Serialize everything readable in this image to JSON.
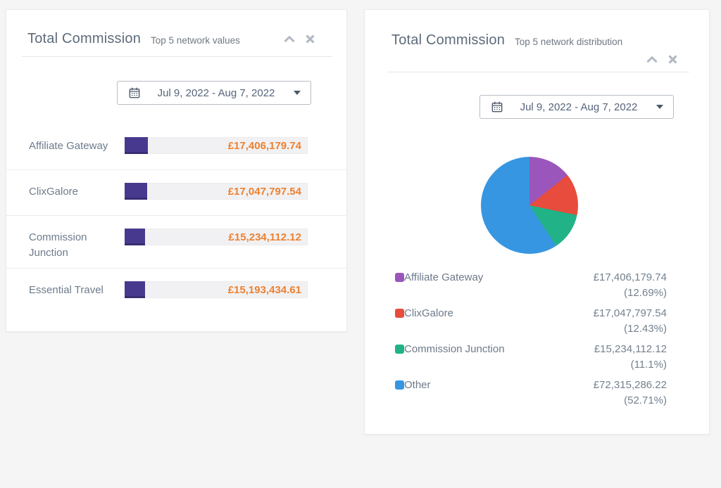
{
  "page": {
    "background": "#f5f5f6"
  },
  "left_panel": {
    "title": "Total Commission",
    "subtitle": "Top 5 network values",
    "date_range": "Jul 9, 2022 - Aug 7, 2022",
    "bar_color": "#473a8e",
    "bar_edge_color": "#372d73",
    "value_color": "#ee8130",
    "rows": [
      {
        "label": "Affiliate Gateway",
        "value": "£17,406,179.74",
        "percent": 12.69
      },
      {
        "label": "ClixGalore",
        "value": "£17,047,797.54",
        "percent": 12.43
      },
      {
        "label": "Commission Junction",
        "value": "£15,234,112.12",
        "percent": 11.11
      },
      {
        "label": "Essential Travel",
        "value": "£15,193,434.61",
        "percent": 11.08
      }
    ]
  },
  "right_panel": {
    "title": "Total Commission",
    "subtitle": "Top 5 network distribution",
    "date_range": "Jul 9, 2022 - Aug 7, 2022",
    "legend": [
      {
        "name": "Affiliate Gateway",
        "value": "£17,406,179.74",
        "percent": "(12.69%)",
        "color": "#9b56bb"
      },
      {
        "name": "ClixGalore",
        "value": "£17,047,797.54",
        "percent": "(12.43%)",
        "color": "#e74c3c"
      },
      {
        "name": "Commission Junction",
        "value": "£15,234,112.12",
        "percent": "(11.1%)",
        "color": "#21b287"
      },
      {
        "name": "Other",
        "value": "£72,315,286.22",
        "percent": "(52.71%)",
        "color": "#3796e1"
      }
    ]
  },
  "chart_data": [
    {
      "type": "bar",
      "title": "Total Commission",
      "subtitle": "Top 5 network values",
      "date_range": "Jul 9, 2022 - Aug 7, 2022",
      "orientation": "horizontal",
      "categories": [
        "Affiliate Gateway",
        "ClixGalore",
        "Commission Junction",
        "Essential Travel"
      ],
      "values": [
        17406179.74,
        17047797.54,
        15234112.12,
        15193434.61
      ],
      "value_labels": [
        "£17,406,179.74",
        "£17,047,797.54",
        "£15,234,112.12",
        "£15,193,434.61"
      ],
      "percent_of_total": [
        12.69,
        12.43,
        11.11,
        11.08
      ],
      "unit": "GBP",
      "bar_color": "#473a8e"
    },
    {
      "type": "pie",
      "title": "Total Commission",
      "subtitle": "Top 5 network distribution",
      "date_range": "Jul 9, 2022 - Aug 7, 2022",
      "labels": [
        "Affiliate Gateway",
        "ClixGalore",
        "Commission Junction",
        "Other"
      ],
      "values": [
        17406179.74,
        17047797.54,
        15234112.12,
        72315286.22
      ],
      "value_labels": [
        "£17,406,179.74",
        "£17,047,797.54",
        "£15,234,112.12",
        "£72,315,286.22"
      ],
      "percents": [
        12.69,
        12.43,
        11.1,
        52.71
      ],
      "colors": [
        "#9b56bb",
        "#e74c3c",
        "#21b287",
        "#3796e1"
      ],
      "start_angle_deg": 0,
      "direction": "clockwise",
      "legend_position": "bottom"
    }
  ]
}
